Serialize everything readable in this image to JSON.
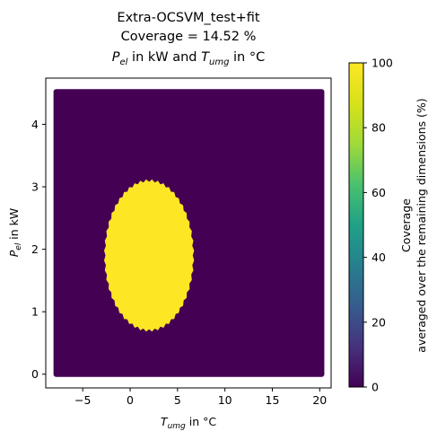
{
  "chart_data": {
    "type": "heatmap",
    "title_lines": {
      "line1": "Extra-OCSVM_test+fit",
      "line2": "Coverage = 14.52 %",
      "line3": {
        "pel_base": "P",
        "pel_sub": "el",
        "middle": " in kW and ",
        "tumg_base": "T",
        "tumg_sub": "umg",
        "end": " in °C"
      }
    },
    "xlabel": {
      "base": "T",
      "sub": "umg",
      "suffix": " in °C"
    },
    "ylabel": {
      "base": "P",
      "sub": "el",
      "suffix": " in kW"
    },
    "xlim": [
      -8.9,
      21.2
    ],
    "ylim": [
      -0.22,
      4.74
    ],
    "x_ticks": [
      -5,
      0,
      5,
      10,
      15,
      20
    ],
    "y_ticks": [
      0,
      1,
      2,
      3,
      4
    ],
    "x_tick_labels": [
      "−5",
      "0",
      "5",
      "10",
      "15",
      "20"
    ],
    "y_tick_labels": [
      "0",
      "1",
      "2",
      "3",
      "4"
    ],
    "domain": {
      "x": [
        -7.8,
        20.2
      ],
      "y": [
        0.0,
        4.52
      ]
    },
    "covered_region": {
      "shape": "ellipse",
      "center_x": 2.0,
      "center_y": 1.9,
      "half_width_x": 4.6,
      "half_height_y": 1.18,
      "value": 100
    },
    "background_value": 0,
    "colorbar": {
      "min": 0,
      "max": 100,
      "ticks": [
        0,
        20,
        40,
        60,
        80,
        100
      ],
      "tick_labels": [
        "0",
        "20",
        "40",
        "60",
        "80",
        "100"
      ],
      "label_line1": "Coverage",
      "label_line2": "averaged over the remaining dimensions (%)",
      "colormap": "viridis"
    },
    "colors": {
      "low": "#440154",
      "high": "#fde725"
    }
  }
}
